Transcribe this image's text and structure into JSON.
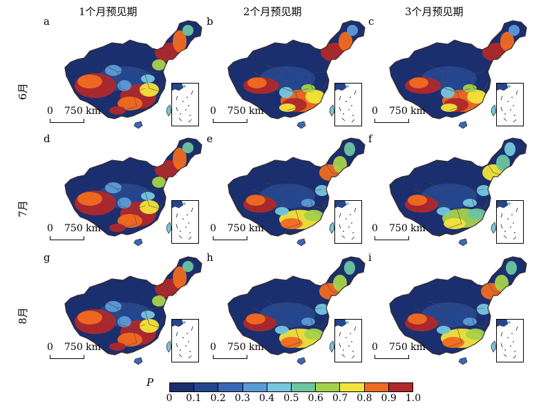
{
  "columns": [
    "1个月预见期",
    "2个月预见期",
    "3个月预见期"
  ],
  "rows": [
    "6月",
    "7月",
    "8月"
  ],
  "panels": [
    {
      "letter": "a",
      "pattern": "west-hot"
    },
    {
      "letter": "b",
      "pattern": "south-hot"
    },
    {
      "letter": "c",
      "pattern": "south-hot"
    },
    {
      "letter": "d",
      "pattern": "west-hot"
    },
    {
      "letter": "e",
      "pattern": "mixed"
    },
    {
      "letter": "f",
      "pattern": "mid"
    },
    {
      "letter": "g",
      "pattern": "west-hot"
    },
    {
      "letter": "h",
      "pattern": "mixed"
    },
    {
      "letter": "i",
      "pattern": "mixed"
    }
  ],
  "scale_bar": {
    "zero": "0",
    "label": "750 km"
  },
  "legend": {
    "title": "P",
    "ticks": [
      "0",
      "0.1",
      "0.2",
      "0.3",
      "0.4",
      "0.5",
      "0.6",
      "0.7",
      "0.8",
      "0.9",
      "1.0"
    ],
    "colors": [
      "#1b2f6e",
      "#24468f",
      "#3a68b8",
      "#5c9ad6",
      "#76c6dd",
      "#6bc59e",
      "#a6d24a",
      "#f3e43a",
      "#f06a20",
      "#b0282a"
    ]
  }
}
